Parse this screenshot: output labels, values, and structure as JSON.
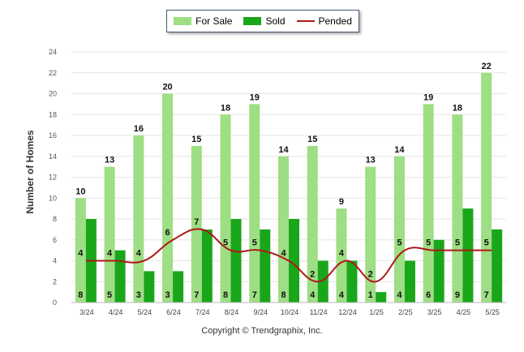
{
  "chart_data": {
    "type": "bar",
    "categories": [
      "3/24",
      "4/24",
      "5/24",
      "6/24",
      "7/24",
      "8/24",
      "9/24",
      "10/24",
      "11/24",
      "12/24",
      "1/25",
      "2/25",
      "3/25",
      "4/25",
      "5/25"
    ],
    "series": [
      {
        "name": "For Sale",
        "type": "bar",
        "color": "#9ede84",
        "values": [
          10,
          13,
          16,
          20,
          15,
          18,
          19,
          14,
          15,
          9,
          13,
          14,
          19,
          18,
          22
        ]
      },
      {
        "name": "Sold",
        "type": "bar",
        "color": "#1aa61a",
        "values": [
          8,
          5,
          3,
          3,
          7,
          8,
          7,
          8,
          4,
          4,
          1,
          4,
          6,
          9,
          7
        ]
      },
      {
        "name": "Pended",
        "type": "line",
        "color": "#b01818",
        "values": [
          4,
          4,
          4,
          6,
          7,
          5,
          5,
          4,
          2,
          4,
          2,
          5,
          5,
          5,
          5
        ]
      }
    ],
    "ylabel": "Number of Homes",
    "xlabel": "",
    "ylim": [
      0,
      24
    ],
    "yticks": [
      0,
      2,
      4,
      6,
      8,
      10,
      12,
      14,
      16,
      18,
      20,
      22,
      24
    ],
    "grid": true,
    "legend_position": "top-center"
  },
  "footer": "Copyright © Trendgraphix, Inc."
}
